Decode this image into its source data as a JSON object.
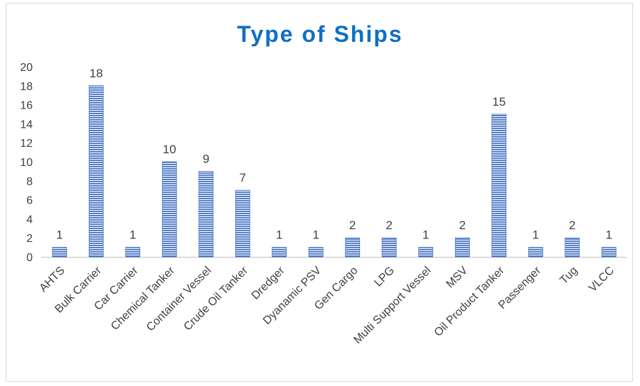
{
  "chart_data": {
    "type": "bar",
    "title": "Type of Ships",
    "categories": [
      "AHTS",
      "Bulk Carrier",
      "Car Carrier",
      "Chemical Tanker",
      "Container Vessel",
      "Crude Oil Tanker",
      "Dredger",
      "Dyanamic PSV",
      "Gen Cargo",
      "LPG",
      "Multi Support Vessel",
      "MSV",
      "Oil Product Tanker",
      "Passenger",
      "Tug",
      "VLCC"
    ],
    "values": [
      1,
      18,
      1,
      10,
      9,
      7,
      1,
      1,
      2,
      2,
      1,
      2,
      15,
      1,
      2,
      1
    ],
    "ylim": [
      0,
      20
    ],
    "yticks": [
      0,
      2,
      4,
      6,
      8,
      10,
      12,
      14,
      16,
      18,
      20
    ],
    "grid": false,
    "data_labels": true,
    "bar_color": "#4472c4",
    "title_color": "#0f6fc6"
  }
}
